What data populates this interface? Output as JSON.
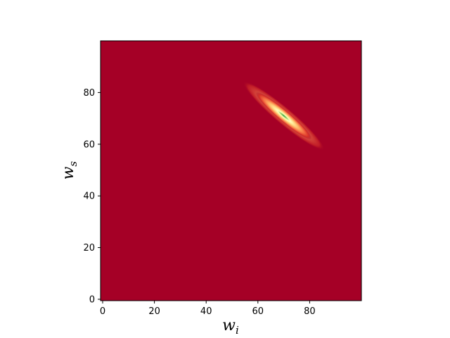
{
  "chart_data": {
    "type": "heatmap",
    "title": "",
    "xlabel_base": "w",
    "xlabel_sub": "i",
    "ylabel_base": "w",
    "ylabel_sub": "s",
    "xlim": [
      0,
      100
    ],
    "ylim": [
      0,
      100
    ],
    "x_ticks": [
      0,
      20,
      40,
      60,
      80
    ],
    "y_ticks": [
      0,
      20,
      40,
      60,
      80
    ],
    "x_tick_labels": [
      "0",
      "20",
      "40",
      "60",
      "80"
    ],
    "y_tick_labels": [
      "0",
      "20",
      "40",
      "60",
      "80"
    ],
    "grid": false,
    "background_color": "#a50026",
    "colormap": "RdYlGn",
    "peak": {
      "x": 70,
      "y": 71,
      "orientation": "anti-diagonal",
      "extent_along": 14,
      "extent_across": 1.6
    }
  }
}
